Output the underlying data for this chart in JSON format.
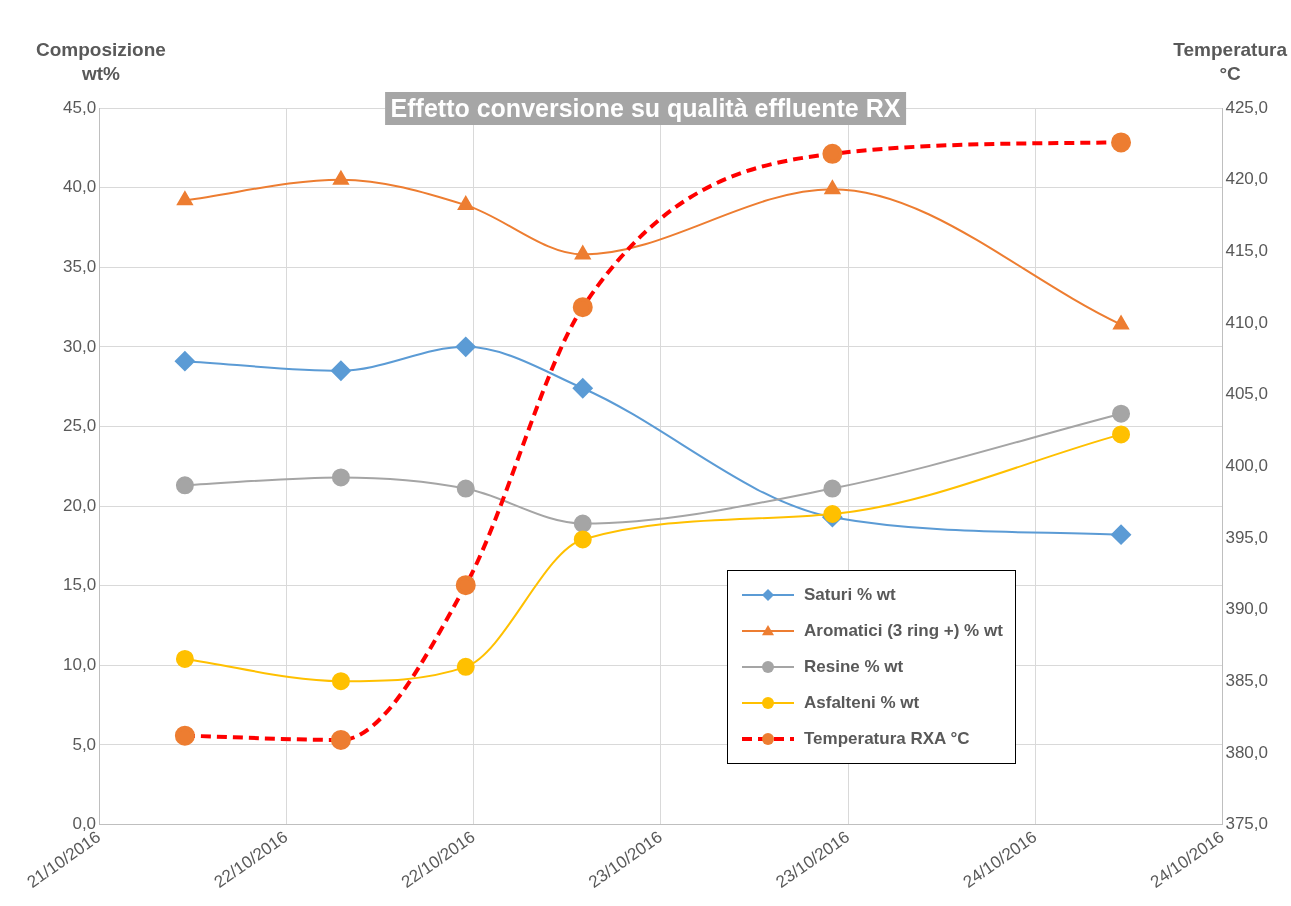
{
  "chart_data": {
    "type": "line",
    "title": "Effetto conversione su qualità effluente RX",
    "ylabel": "Composizione wt%",
    "y2label": "Temperatura °C",
    "x": [
      "2016-10-21T17:30",
      "2016-10-22T03:30",
      "2016-10-22T11:30",
      "2016-10-22T19:00",
      "2016-10-23T11:00",
      "2016-10-24T05:30"
    ],
    "series": [
      {
        "name": "Saturi % wt",
        "color": "#5b9bd5",
        "marker": "diamond",
        "values": [
          29.1,
          28.5,
          30.0,
          27.4,
          19.3,
          18.2
        ]
      },
      {
        "name": "Aromatici (3 ring +) % wt",
        "color": "#ed7d31",
        "marker": "triangle",
        "values": [
          39.2,
          40.5,
          38.9,
          35.8,
          39.9,
          31.4
        ]
      },
      {
        "name": "Resine % wt",
        "color": "#a5a5a5",
        "marker": "circle",
        "values": [
          21.3,
          21.8,
          21.1,
          18.9,
          21.1,
          25.8
        ]
      },
      {
        "name": "Asfalteni % wt",
        "color": "#ffc000",
        "marker": "circle",
        "values": [
          10.4,
          9.0,
          9.9,
          17.9,
          19.5,
          24.5
        ]
      },
      {
        "name": "Temperatura RXA °C",
        "color": "#ff0000",
        "colors": [
          "#ed7d31",
          "#ed7d31",
          "#ed7d31",
          "#ed7d31",
          "#ed7d31",
          "#ed7d31"
        ],
        "marker": "circle",
        "line_style": "dashed",
        "axis": "y2",
        "values": [
          381.2,
          380.9,
          391.7,
          411.1,
          421.8,
          422.6
        ]
      }
    ],
    "xlim": [
      "2016-10-21T12:00",
      "2016-10-24T12:00"
    ],
    "xticks": [
      {
        "value": "2016-10-21T12:00",
        "label": "21/10/2016"
      },
      {
        "value": "2016-10-22T00:00",
        "label": "22/10/2016"
      },
      {
        "value": "2016-10-22T12:00",
        "label": "22/10/2016"
      },
      {
        "value": "2016-10-23T00:00",
        "label": "23/10/2016"
      },
      {
        "value": "2016-10-23T12:00",
        "label": "23/10/2016"
      },
      {
        "value": "2016-10-24T00:00",
        "label": "24/10/2016"
      },
      {
        "value": "2016-10-24T12:00",
        "label": "24/10/2016"
      }
    ],
    "ylim": [
      0,
      45
    ],
    "yticks": [
      {
        "value": 0,
        "label": "0,0"
      },
      {
        "value": 5,
        "label": "5,0"
      },
      {
        "value": 10,
        "label": "10,0"
      },
      {
        "value": 15,
        "label": "15,0"
      },
      {
        "value": 20,
        "label": "20,0"
      },
      {
        "value": 25,
        "label": "25,0"
      },
      {
        "value": 30,
        "label": "30,0"
      },
      {
        "value": 35,
        "label": "35,0"
      },
      {
        "value": 40,
        "label": "40,0"
      },
      {
        "value": 45,
        "label": "45,0"
      }
    ],
    "y2lim": [
      375,
      425
    ],
    "y2ticks": [
      {
        "value": 375,
        "label": "375,0"
      },
      {
        "value": 380,
        "label": "380,0"
      },
      {
        "value": 385,
        "label": "385,0"
      },
      {
        "value": 390,
        "label": "390,0"
      },
      {
        "value": 395,
        "label": "395,0"
      },
      {
        "value": 400,
        "label": "400,0"
      },
      {
        "value": 405,
        "label": "405,0"
      },
      {
        "value": 410,
        "label": "410,0"
      },
      {
        "value": 415,
        "label": "415,0"
      },
      {
        "value": 420,
        "label": "420,0"
      },
      {
        "value": 425,
        "label": "425,0"
      }
    ],
    "grid": true,
    "legend": "bottom right"
  }
}
